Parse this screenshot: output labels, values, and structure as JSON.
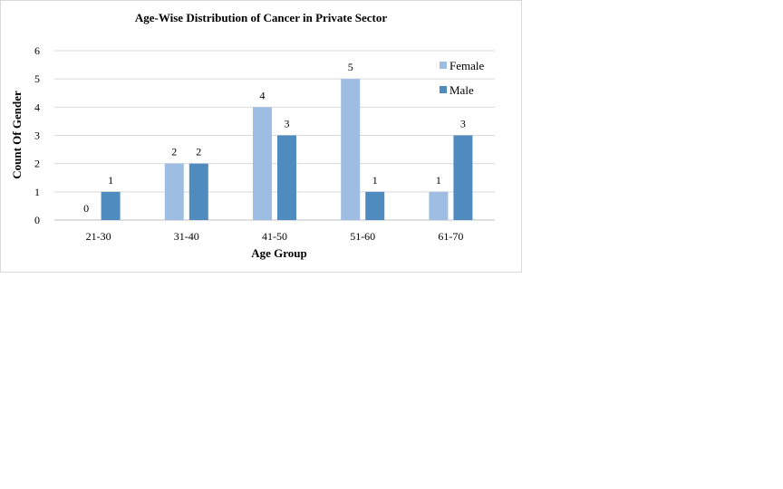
{
  "chart_data": {
    "type": "bar",
    "title": "Age-Wise Distribution of Cancer in Private Sector",
    "xlabel": "Age Group",
    "ylabel": "Count Of Gender",
    "categories": [
      "21-30",
      "31-40",
      "41-50",
      "51-60",
      "61-70"
    ],
    "series": [
      {
        "name": "Female",
        "values": [
          0,
          2,
          4,
          5,
          1
        ],
        "color": "#9dbde3"
      },
      {
        "name": "Male",
        "values": [
          1,
          2,
          3,
          1,
          3
        ],
        "color": "#4f8bbf"
      }
    ],
    "ylim": [
      0,
      6
    ],
    "yticks": [
      0,
      1,
      2,
      3,
      4,
      5,
      6
    ],
    "grid": true,
    "legend": "top-right",
    "data_labels": true
  }
}
